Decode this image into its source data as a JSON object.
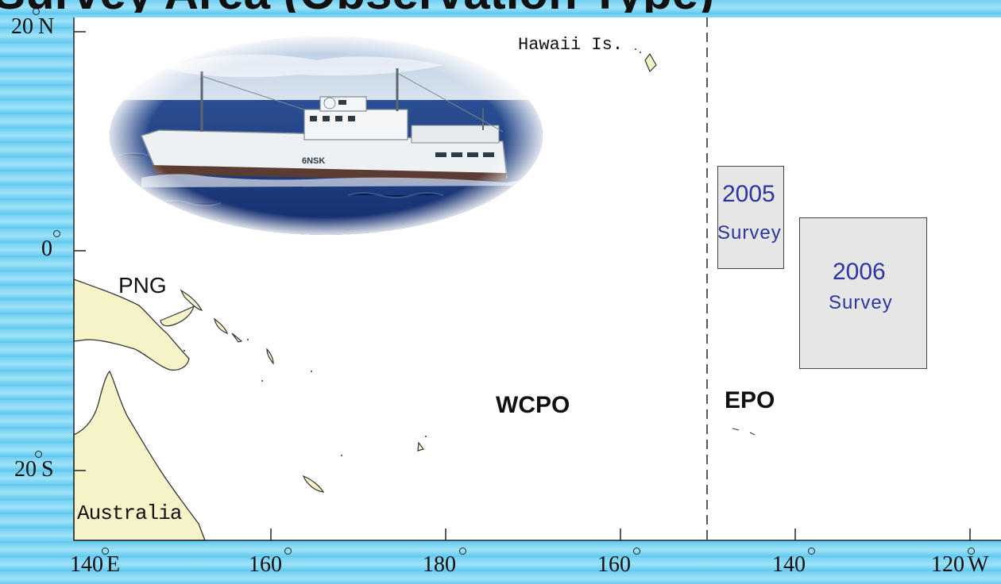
{
  "slide_title": "Survey Area (Observation Type)",
  "map": {
    "lat_labels": {
      "n20": "20",
      "n20_hem": "N",
      "eq": "0",
      "s20": "20",
      "s20_hem": "S"
    },
    "lon_labels": {
      "e140": "140",
      "e140_hem": "E",
      "e160": "160",
      "date180": "180",
      "w160": "160",
      "w140": "140",
      "w120": "120",
      "w120_hem": "W"
    },
    "places": {
      "hawaii": "Hawaii Is.",
      "png": "PNG",
      "australia": "Australia"
    },
    "regions": {
      "wcpo": "WCPO",
      "epo": "EPO"
    },
    "surveys": [
      {
        "year": "2005",
        "label": "Survey"
      },
      {
        "year": "2006",
        "label": "Survey"
      }
    ],
    "vessel_id": "6NSK",
    "colors": {
      "land": "#f7f3c8",
      "survey_box": "#e6e6e6",
      "survey_text": "#2d35a0",
      "background": "#6fd0f2"
    }
  }
}
